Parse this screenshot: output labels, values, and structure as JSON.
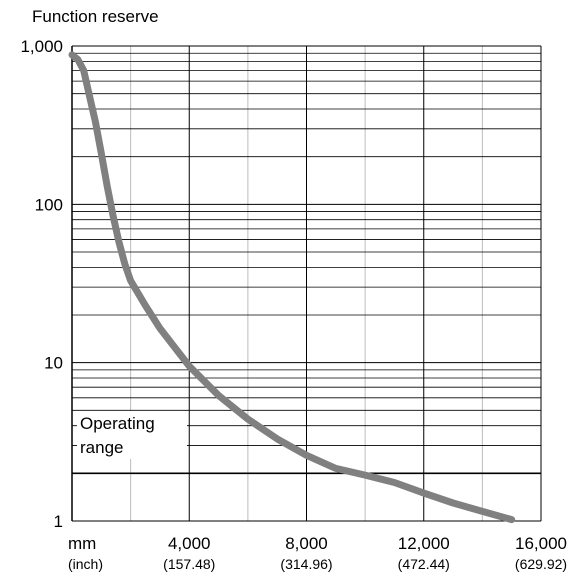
{
  "chart_data": {
    "type": "line",
    "title": "Function reserve",
    "x_unit_label": "mm",
    "x_unit_label_secondary": "(inch)",
    "x_ticks": [
      4000,
      8000,
      12000,
      16000
    ],
    "x_tick_labels": [
      "4,000",
      "8,000",
      "12,000",
      "16,000"
    ],
    "x_tick_labels_secondary": [
      "(157.48)",
      "(314.96)",
      "(472.44)",
      "(629.92)"
    ],
    "y_ticks": [
      1,
      10,
      100,
      1000
    ],
    "y_tick_labels": [
      "1",
      "10",
      "100",
      "1,000"
    ],
    "xlim": [
      0,
      16000
    ],
    "ylim": [
      1,
      1000
    ],
    "y_scale": "log",
    "grid": true,
    "operating_range_label": [
      "Operating",
      "range"
    ],
    "operating_range_threshold": 2,
    "series": [
      {
        "color": "#808080",
        "x": [
          0,
          200,
          400,
          600,
          800,
          1000,
          1200,
          1400,
          1600,
          1800,
          2000,
          2500,
          3000,
          3500,
          4000,
          5000,
          6000,
          7000,
          8000,
          9000,
          10000,
          11000,
          12000,
          13000,
          14000,
          15000
        ],
        "y": [
          880,
          820,
          700,
          480,
          330,
          210,
          130,
          85,
          58,
          42,
          33,
          23,
          16.5,
          12.5,
          9.5,
          6.2,
          4.4,
          3.3,
          2.6,
          2.15,
          1.95,
          1.75,
          1.5,
          1.3,
          1.15,
          1.02
        ]
      }
    ]
  }
}
